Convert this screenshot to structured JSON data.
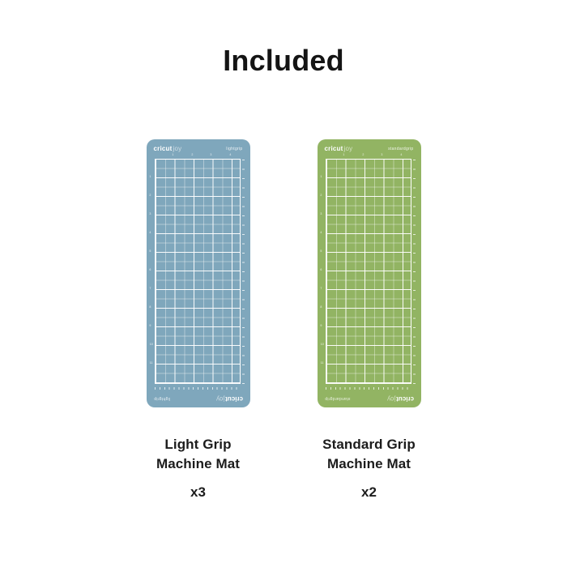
{
  "page": {
    "title": "Included",
    "background": "#ffffff",
    "text_color": "#141414"
  },
  "grid": {
    "line_color": "#ffffff",
    "inches_wide": 4.5,
    "inches_tall": 12,
    "ruler_top": [
      "1",
      "2",
      "3",
      "4"
    ],
    "ruler_left": [
      "1",
      "2",
      "3",
      "4",
      "5",
      "6",
      "7",
      "8",
      "9",
      "10",
      "11"
    ]
  },
  "mats": [
    {
      "brand_bold": "cricut",
      "brand_light": "joy",
      "grip_label": "lightgrip",
      "color": "#7FA7BC",
      "caption_line1": "Light Grip",
      "caption_line2": "Machine Mat",
      "count": "x3"
    },
    {
      "brand_bold": "cricut",
      "brand_light": "joy",
      "grip_label": "standardgrip",
      "color": "#92B463",
      "caption_line1": "Standard Grip",
      "caption_line2": "Machine Mat",
      "count": "x2"
    }
  ]
}
